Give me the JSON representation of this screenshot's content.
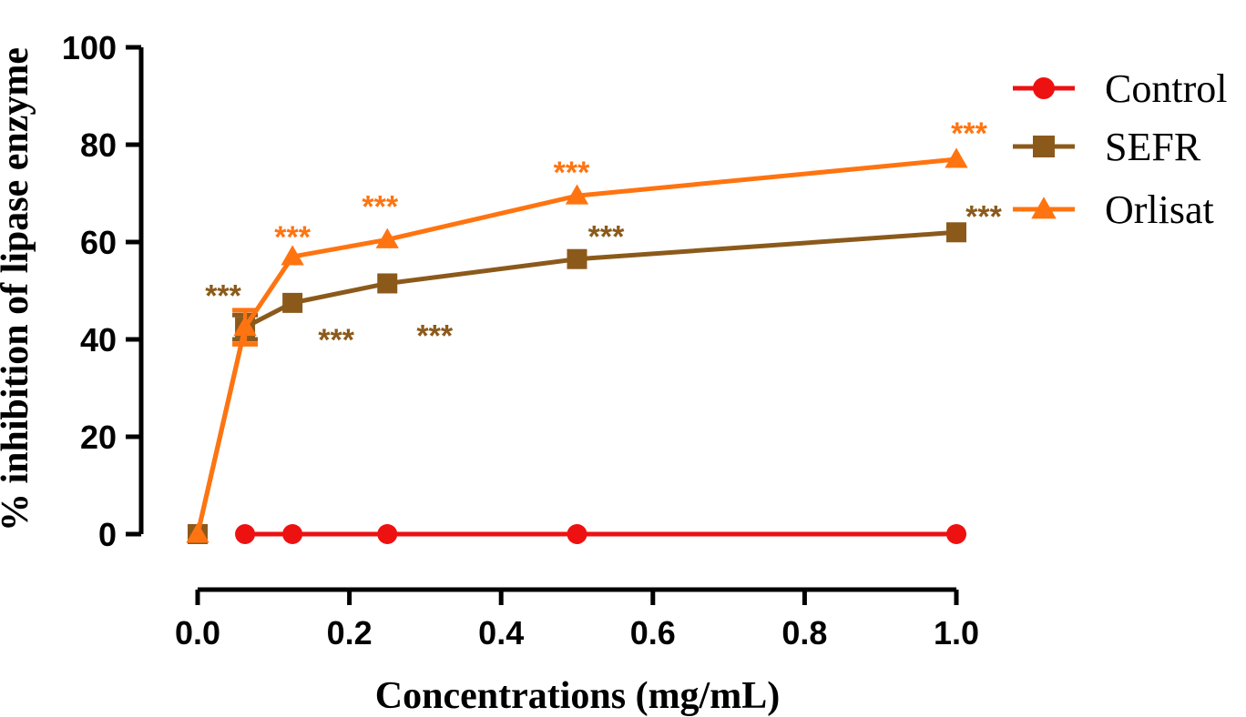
{
  "chart_data": {
    "type": "line",
    "title": "",
    "xlabel": "Concentrations (mg/mL)",
    "ylabel": "% inhibition of lipase enzyme",
    "xlim": [
      0,
      1
    ],
    "ylim": [
      0,
      100
    ],
    "xticks": [
      "0.0",
      "0.2",
      "0.4",
      "0.6",
      "0.8",
      "1.0"
    ],
    "yticks": [
      "0",
      "20",
      "40",
      "60",
      "80",
      "100"
    ],
    "grid": false,
    "legend_position": "top-right",
    "series": [
      {
        "name": "Control",
        "color": "#ee1111",
        "marker": "circle",
        "x": [
          0.0625,
          0.125,
          0.25,
          0.5,
          1.0
        ],
        "values": [
          0,
          0,
          0,
          0,
          0
        ]
      },
      {
        "name": "SEFR",
        "color": "#8b5a1b",
        "marker": "square",
        "x": [
          0,
          0.0625,
          0.125,
          0.25,
          0.5,
          1.0
        ],
        "values": [
          0,
          42.5,
          47.5,
          51.5,
          56.5,
          62
        ],
        "errors": [
          0,
          2.5,
          0,
          0,
          0,
          0
        ],
        "significance": [
          "",
          "***",
          "***",
          "***",
          "***",
          "***"
        ]
      },
      {
        "name": "Orlisat",
        "color": "#ff7410",
        "marker": "triangle",
        "x": [
          0,
          0.0625,
          0.125,
          0.25,
          0.5,
          1.0
        ],
        "values": [
          0,
          42.5,
          57,
          60.5,
          69.5,
          77
        ],
        "errors": [
          0,
          3.5,
          0,
          0,
          0,
          0
        ],
        "significance": [
          "",
          "",
          "***",
          "***",
          "***",
          "***"
        ]
      }
    ]
  }
}
